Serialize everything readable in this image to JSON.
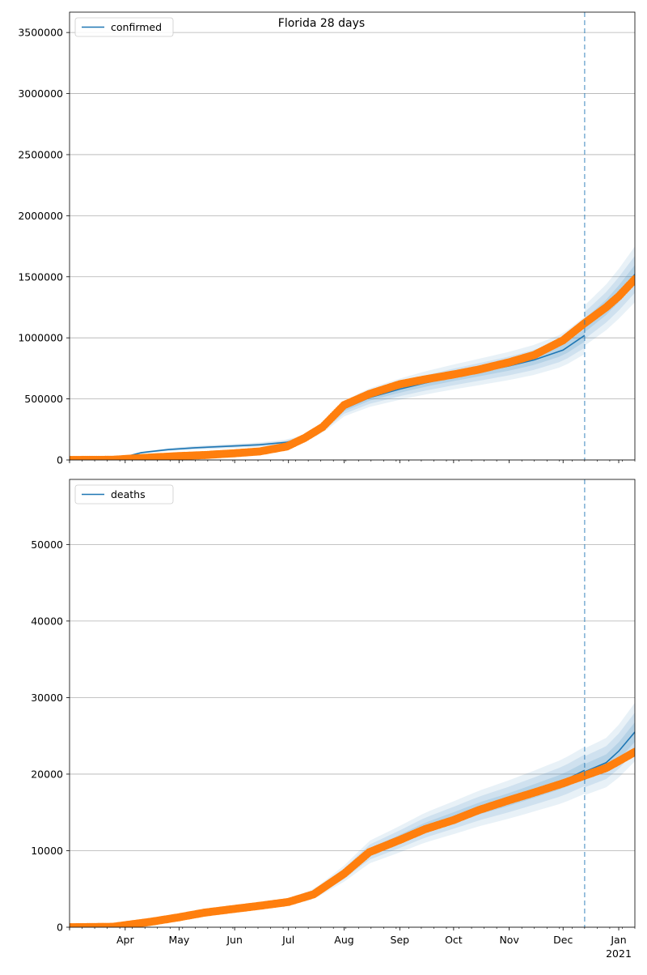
{
  "figure": {
    "title": "Florida 28 days"
  },
  "chart_data": [
    {
      "type": "line",
      "panel": "top",
      "title": "Florida 28 days",
      "xlabel": "",
      "ylabel": "",
      "ylim": [
        0,
        3666667
      ],
      "yticks": [
        0,
        500000,
        1000000,
        1500000,
        2000000,
        2500000,
        3000000,
        3500000
      ],
      "xlim": [
        "2020-03-01",
        "2021-01-10"
      ],
      "forecast_start": "2020-12-13",
      "grid": "horizontal",
      "legend": {
        "position": "top-left",
        "entries": [
          "confirmed"
        ]
      },
      "series": [
        {
          "name": "confirmed",
          "kind": "model",
          "color": "#1f77b4",
          "points": [
            [
              "2020-03-01",
              0
            ],
            [
              "2020-03-20",
              3000
            ],
            [
              "2020-03-29",
              15000
            ],
            [
              "2020-04-10",
              60000
            ],
            [
              "2020-04-25",
              85000
            ],
            [
              "2020-05-10",
              100000
            ],
            [
              "2020-06-01",
              115000
            ],
            [
              "2020-06-15",
              125000
            ],
            [
              "2020-06-30",
              145000
            ],
            [
              "2020-07-10",
              180000
            ],
            [
              "2020-07-20",
              260000
            ],
            [
              "2020-08-01",
              420000
            ],
            [
              "2020-08-15",
              510000
            ],
            [
              "2020-09-01",
              580000
            ],
            [
              "2020-09-15",
              630000
            ],
            [
              "2020-10-01",
              680000
            ],
            [
              "2020-10-15",
              720000
            ],
            [
              "2020-11-01",
              770000
            ],
            [
              "2020-11-15",
              820000
            ],
            [
              "2020-12-01",
              900000
            ],
            [
              "2020-12-13",
              1020000
            ]
          ],
          "forecast_points": [
            [
              "2020-12-13",
              1100000
            ],
            [
              "2020-12-25",
              1250000
            ],
            [
              "2021-01-01",
              1360000
            ],
            [
              "2021-01-10",
              1520000
            ]
          ]
        },
        {
          "name": "",
          "kind": "observed",
          "color": "#ff7f0e",
          "points": [
            [
              "2020-03-01",
              0
            ],
            [
              "2020-03-25",
              1500
            ],
            [
              "2020-04-01",
              8000
            ],
            [
              "2020-04-15",
              20000
            ],
            [
              "2020-05-01",
              32000
            ],
            [
              "2020-05-15",
              40000
            ],
            [
              "2020-06-01",
              55000
            ],
            [
              "2020-06-15",
              70000
            ],
            [
              "2020-06-30",
              110000
            ],
            [
              "2020-07-10",
              180000
            ],
            [
              "2020-07-20",
              270000
            ],
            [
              "2020-08-01",
              450000
            ],
            [
              "2020-08-15",
              540000
            ],
            [
              "2020-09-01",
              620000
            ],
            [
              "2020-09-15",
              660000
            ],
            [
              "2020-10-01",
              700000
            ],
            [
              "2020-10-15",
              740000
            ],
            [
              "2020-11-01",
              800000
            ],
            [
              "2020-11-15",
              860000
            ],
            [
              "2020-12-01",
              980000
            ],
            [
              "2020-12-13",
              1120000
            ],
            [
              "2020-12-25",
              1250000
            ],
            [
              "2021-01-01",
              1340000
            ],
            [
              "2021-01-10",
              1480000
            ]
          ]
        }
      ]
    },
    {
      "type": "line",
      "panel": "bottom",
      "title": "",
      "xlabel": "",
      "ylabel": "",
      "ylim": [
        0,
        58500
      ],
      "yticks": [
        0,
        10000,
        20000,
        30000,
        40000,
        50000
      ],
      "xlim": [
        "2020-03-01",
        "2021-01-10"
      ],
      "forecast_start": "2020-12-13",
      "grid": "horizontal",
      "legend": {
        "position": "top-left",
        "entries": [
          "deaths"
        ]
      },
      "x_tick_labels": [
        "Apr",
        "May",
        "Jun",
        "Jul",
        "Aug",
        "Sep",
        "Oct",
        "Nov",
        "Dec",
        "Jan"
      ],
      "x_year_label": "2021",
      "series": [
        {
          "name": "deaths",
          "kind": "model",
          "color": "#1f77b4",
          "points": [
            [
              "2020-03-01",
              0
            ],
            [
              "2020-03-25",
              50
            ],
            [
              "2020-04-15",
              700
            ],
            [
              "2020-05-01",
              1300
            ],
            [
              "2020-05-15",
              1900
            ],
            [
              "2020-06-01",
              2400
            ],
            [
              "2020-06-15",
              2800
            ],
            [
              "2020-07-01",
              3300
            ],
            [
              "2020-07-15",
              4300
            ],
            [
              "2020-08-01",
              7000
            ],
            [
              "2020-08-15",
              9800
            ],
            [
              "2020-09-01",
              11500
            ],
            [
              "2020-09-15",
              13000
            ],
            [
              "2020-10-01",
              14300
            ],
            [
              "2020-10-15",
              15500
            ],
            [
              "2020-11-01",
              16700
            ],
            [
              "2020-11-15",
              17800
            ],
            [
              "2020-12-01",
              19100
            ],
            [
              "2020-12-13",
              20500
            ]
          ],
          "forecast_points": [
            [
              "2020-12-13",
              20300
            ],
            [
              "2020-12-25",
              21500
            ],
            [
              "2021-01-01",
              23000
            ],
            [
              "2021-01-10",
              25500
            ]
          ]
        },
        {
          "name": "",
          "kind": "observed",
          "color": "#ff7f0e",
          "points": [
            [
              "2020-03-01",
              0
            ],
            [
              "2020-03-25",
              50
            ],
            [
              "2020-04-15",
              700
            ],
            [
              "2020-05-01",
              1300
            ],
            [
              "2020-05-15",
              1900
            ],
            [
              "2020-06-01",
              2400
            ],
            [
              "2020-06-15",
              2800
            ],
            [
              "2020-07-01",
              3300
            ],
            [
              "2020-07-15",
              4300
            ],
            [
              "2020-08-01",
              7000
            ],
            [
              "2020-08-15",
              9800
            ],
            [
              "2020-09-01",
              11400
            ],
            [
              "2020-09-15",
              12800
            ],
            [
              "2020-10-01",
              14000
            ],
            [
              "2020-10-15",
              15300
            ],
            [
              "2020-11-01",
              16600
            ],
            [
              "2020-11-15",
              17600
            ],
            [
              "2020-12-01",
              18800
            ],
            [
              "2020-12-13",
              19800
            ],
            [
              "2020-12-25",
              20800
            ],
            [
              "2021-01-01",
              21700
            ],
            [
              "2021-01-10",
              22900
            ]
          ]
        }
      ]
    }
  ]
}
